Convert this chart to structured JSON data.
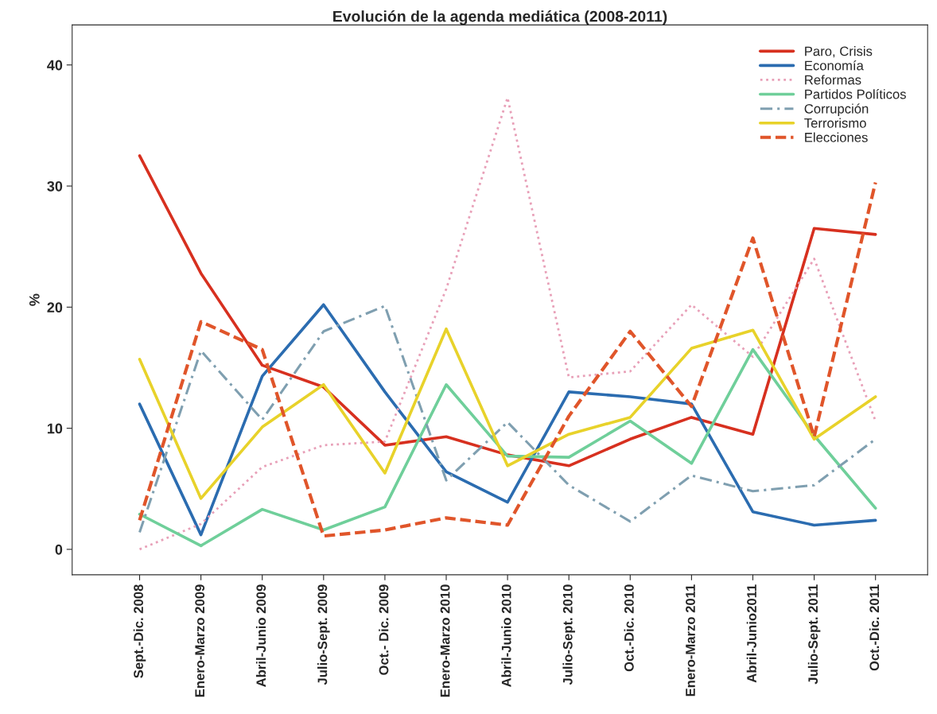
{
  "chart_data": {
    "type": "line",
    "title": "Evolución de la agenda mediática (2008-2011)",
    "ylabel": "%",
    "categories": [
      "Sept.-Dic. 2008",
      "Enero-Marzo 2009",
      "Abril-Junio 2009",
      "Julio-Sept. 2009",
      "Oct.- Dic. 2009",
      "Enero-Marzo 2010",
      "Abril-Junio 2010",
      "Julio-Sept. 2010",
      "Oct.-Dic. 2010",
      "Enero-Marzo 2011",
      "Abril-Junio2011",
      "Julio-Sept. 2011",
      "Oct.-Dic. 2011"
    ],
    "series": [
      {
        "name": "Paro, Crisis",
        "color": "#d7301f",
        "line_style": "solid",
        "values": [
          32.5,
          22.8,
          15.2,
          13.4,
          8.6,
          9.3,
          7.8,
          6.9,
          9.1,
          10.9,
          9.5,
          26.5,
          26.0
        ]
      },
      {
        "name": "Economía",
        "color": "#2b6cb0",
        "line_style": "solid",
        "values": [
          12.0,
          1.2,
          14.3,
          20.2,
          13.0,
          6.4,
          3.9,
          13.0,
          12.6,
          12.0,
          3.1,
          2.0,
          2.4
        ]
      },
      {
        "name": "Reformas",
        "color": "#e8a0b8",
        "line_style": "dotted",
        "values": [
          0.0,
          2.1,
          6.8,
          8.6,
          8.9,
          21.5,
          37.3,
          14.2,
          14.7,
          20.2,
          15.9,
          24.0,
          10.6
        ]
      },
      {
        "name": "Partidos Políticos",
        "color": "#6fcf9a",
        "line_style": "solid",
        "values": [
          2.9,
          0.3,
          3.3,
          1.6,
          3.5,
          13.6,
          7.7,
          7.6,
          10.6,
          7.1,
          16.5,
          9.4,
          3.4
        ]
      },
      {
        "name": "Corrupción",
        "color": "#7f9fb0",
        "line_style": "dashdot",
        "values": [
          1.4,
          16.4,
          10.7,
          18.0,
          20.1,
          5.7,
          10.5,
          5.3,
          2.3,
          6.1,
          4.8,
          5.3,
          9.1
        ]
      },
      {
        "name": "Terrorismo",
        "color": "#e8d22a",
        "line_style": "solid",
        "values": [
          15.7,
          4.2,
          10.1,
          13.6,
          6.3,
          18.2,
          6.9,
          9.5,
          10.9,
          16.6,
          18.1,
          9.1,
          12.6
        ]
      },
      {
        "name": "Elecciones",
        "color": "#e0552a",
        "line_style": "dashed",
        "values": [
          2.4,
          18.8,
          16.5,
          1.1,
          1.6,
          2.6,
          2.0,
          11.0,
          18.0,
          11.8,
          25.7,
          9.3,
          30.3
        ]
      }
    ],
    "ylim": [
      -2.1,
      43.3
    ],
    "yticks": [
      0,
      10,
      20,
      30,
      40
    ],
    "grid": false,
    "legend": "top right"
  }
}
